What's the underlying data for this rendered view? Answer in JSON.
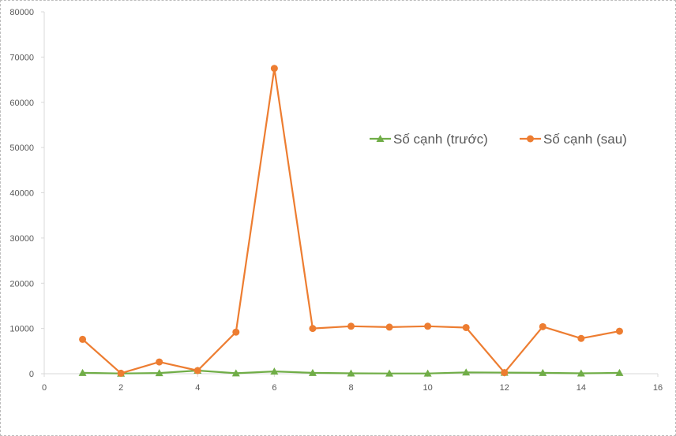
{
  "chart_data": {
    "type": "scatter",
    "title": "",
    "xlabel": "",
    "ylabel": "",
    "xlim": [
      0,
      16
    ],
    "ylim": [
      0,
      80000
    ],
    "xticks": [
      0,
      2,
      4,
      6,
      8,
      10,
      12,
      14,
      16
    ],
    "yticks": [
      0,
      10000,
      20000,
      30000,
      40000,
      50000,
      60000,
      70000,
      80000
    ],
    "grid": false,
    "legend_position": "right",
    "series": [
      {
        "name": "Số cạnh (trước)",
        "color": "#70ad47",
        "marker": "triangle",
        "x": [
          1,
          2,
          3,
          4,
          5,
          6,
          7,
          8,
          9,
          10,
          11,
          12,
          13,
          14,
          15
        ],
        "y": [
          200,
          50,
          150,
          700,
          100,
          500,
          200,
          80,
          60,
          60,
          300,
          250,
          200,
          80,
          200
        ]
      },
      {
        "name": "Số cạnh (sau)",
        "color": "#ed7d31",
        "marker": "circle",
        "x": [
          1,
          2,
          3,
          4,
          5,
          6,
          7,
          8,
          9,
          10,
          11,
          12,
          13,
          14,
          15
        ],
        "y": [
          7600,
          100,
          2600,
          700,
          9200,
          67500,
          10000,
          10500,
          10300,
          10500,
          10200,
          250,
          10400,
          7800,
          9400
        ]
      }
    ]
  }
}
